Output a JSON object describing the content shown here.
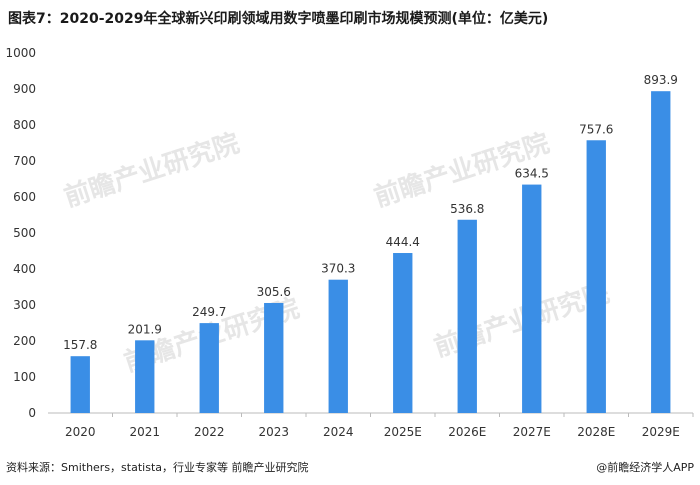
{
  "title": "图表7：2020-2029年全球新兴印刷领域用数字喷墨印刷市场规模预测(单位：亿美元)",
  "source": "资料来源：Smithers，statista，行业专家等 前瞻产业研究院",
  "brand": "@前瞻经济学人APP",
  "watermark_text": "前瞻产业研究院",
  "chart_data": {
    "type": "bar",
    "categories": [
      "2020",
      "2021",
      "2022",
      "2023",
      "2024",
      "2025E",
      "2026E",
      "2027E",
      "2028E",
      "2029E"
    ],
    "values": [
      157.8,
      201.9,
      249.7,
      305.6,
      370.3,
      444.4,
      536.8,
      634.5,
      757.6,
      893.9
    ],
    "ylim": [
      0,
      1000
    ],
    "yticks": [
      0,
      100,
      200,
      300,
      400,
      500,
      600,
      700,
      800,
      900,
      1000
    ],
    "grid": false,
    "bar_color": "#3a8ee6",
    "xlabel": "",
    "ylabel": ""
  }
}
